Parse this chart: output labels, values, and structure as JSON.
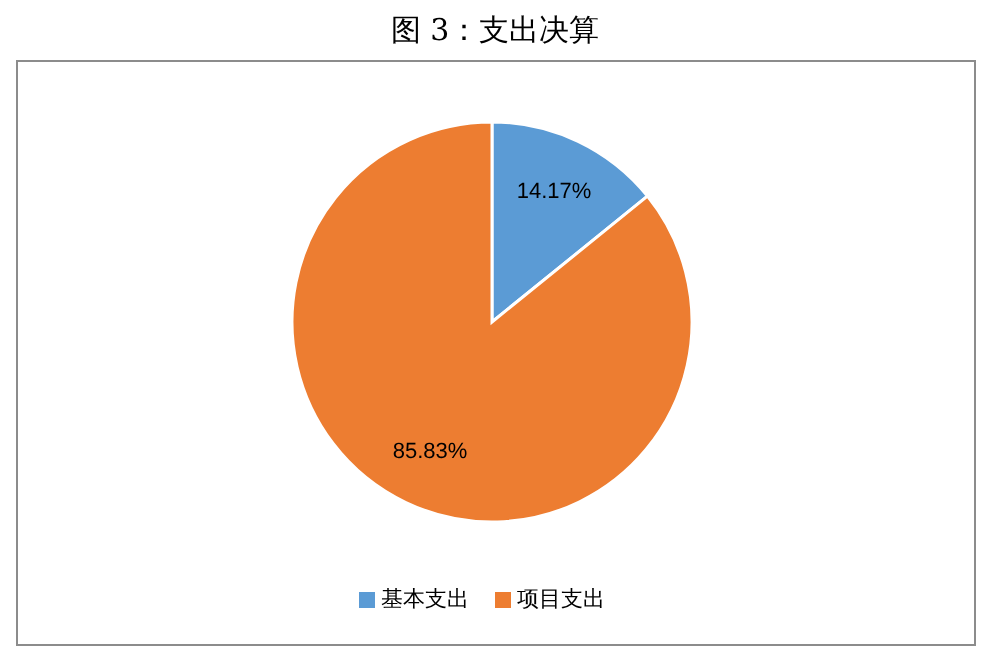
{
  "chart_data": {
    "type": "pie",
    "title": "图 3：支出决算",
    "categories": [
      "基本支出",
      "项目支出"
    ],
    "values": [
      14.17,
      85.83
    ],
    "colors": [
      "#5b9bd5",
      "#ed7d31"
    ],
    "value_labels": [
      "14.17%",
      "85.83%"
    ],
    "legend": "bottom"
  }
}
